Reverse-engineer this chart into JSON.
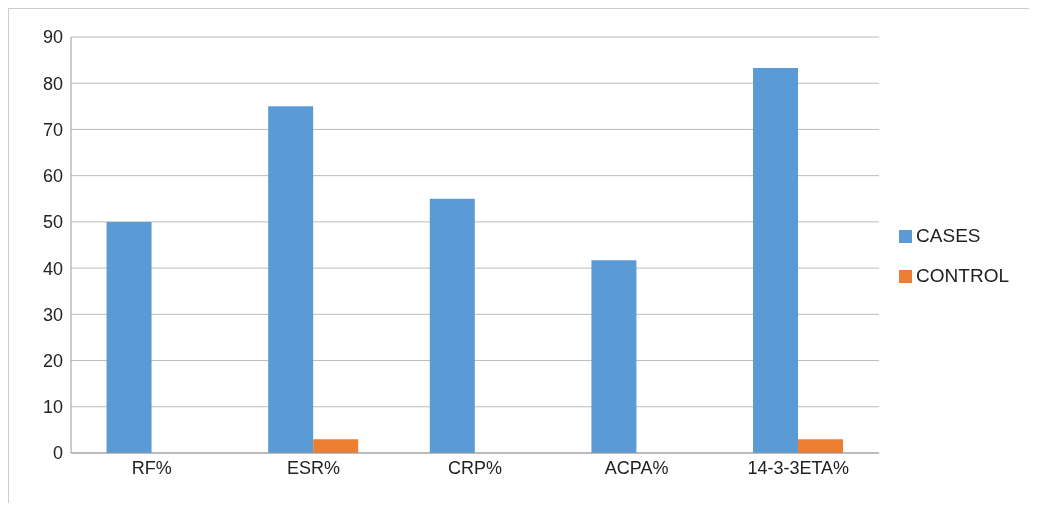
{
  "chart_data": {
    "type": "bar",
    "categories": [
      "RF%",
      "ESR%",
      "CRP%",
      "ACPA%",
      "14-3-3ETA%"
    ],
    "series": [
      {
        "name": "CASES",
        "color": "#5b9bd5",
        "values": [
          50,
          75,
          55,
          41.7,
          83.3
        ]
      },
      {
        "name": "CONTROL",
        "color": "#ed7d31",
        "values": [
          0,
          3,
          0,
          0,
          3
        ]
      }
    ],
    "ylim": [
      0,
      90
    ],
    "yticks": [
      0,
      10,
      20,
      30,
      40,
      50,
      60,
      70,
      80,
      90
    ],
    "grid": "y",
    "legend": "right"
  }
}
